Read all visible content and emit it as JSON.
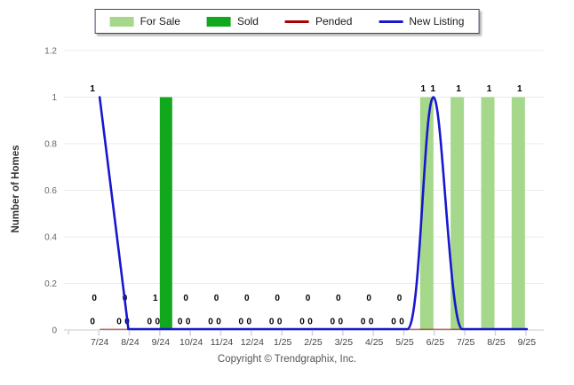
{
  "footer": {
    "copyright": "Copyright © Trendgraphix, Inc."
  },
  "chart_data": {
    "type": "bar",
    "subtype": "grouped bars with overlaid smoothed lines",
    "title": "",
    "xlabel": "",
    "ylabel": "Number of Homes",
    "ylim": [
      0,
      1.2
    ],
    "yticks": [
      "0",
      "0.2",
      "0.4",
      "0.6",
      "0.8",
      "1",
      "1.2"
    ],
    "grid": true,
    "legend_position": "top-center",
    "categories": [
      "7/24",
      "8/24",
      "9/24",
      "10/24",
      "11/24",
      "12/24",
      "1/25",
      "2/25",
      "3/25",
      "4/25",
      "5/25",
      "6/25",
      "7/25",
      "8/25",
      "9/25"
    ],
    "series": [
      {
        "name": "For Sale",
        "type": "bar",
        "color": "#a5d88b",
        "values": [
          0,
          0,
          0,
          0,
          0,
          0,
          0,
          0,
          0,
          0,
          0,
          1,
          1,
          1,
          1
        ]
      },
      {
        "name": "Sold",
        "type": "bar",
        "color": "#12a81d",
        "values": [
          0,
          0,
          1,
          0,
          0,
          0,
          0,
          0,
          0,
          0,
          0,
          0,
          0,
          0,
          0
        ]
      },
      {
        "name": "Pended",
        "type": "line",
        "color": "#aa0000",
        "values": [
          0,
          0,
          0,
          0,
          0,
          0,
          0,
          0,
          0,
          0,
          0,
          0,
          0,
          0,
          0
        ]
      },
      {
        "name": "New Listing",
        "type": "line",
        "color": "#1717cd",
        "values": [
          1,
          0,
          0,
          0,
          0,
          0,
          0,
          0,
          0,
          0,
          0,
          1,
          0,
          0,
          0
        ]
      }
    ],
    "point_labels": [
      {
        "top": "1",
        "upper": "0",
        "lower": "0"
      },
      {
        "top": "",
        "upper": "0",
        "lower": "00"
      },
      {
        "top": "",
        "upper": "1",
        "lower": "00"
      },
      {
        "top": "",
        "upper": "0",
        "lower": "00"
      },
      {
        "top": "",
        "upper": "0",
        "lower": "00"
      },
      {
        "top": "",
        "upper": "0",
        "lower": "00"
      },
      {
        "top": "",
        "upper": "0",
        "lower": "00"
      },
      {
        "top": "",
        "upper": "0",
        "lower": "00"
      },
      {
        "top": "",
        "upper": "0",
        "lower": "00"
      },
      {
        "top": "",
        "upper": "0",
        "lower": "00"
      },
      {
        "top": "",
        "upper": "0",
        "lower": "00"
      },
      {
        "top": "11",
        "upper": "0",
        "lower": "0"
      },
      {
        "top": "1",
        "upper": "0",
        "lower": "0"
      },
      {
        "top": "1",
        "upper": "0",
        "lower": "0"
      },
      {
        "top": "1",
        "upper": "0",
        "lower": "0"
      }
    ]
  }
}
